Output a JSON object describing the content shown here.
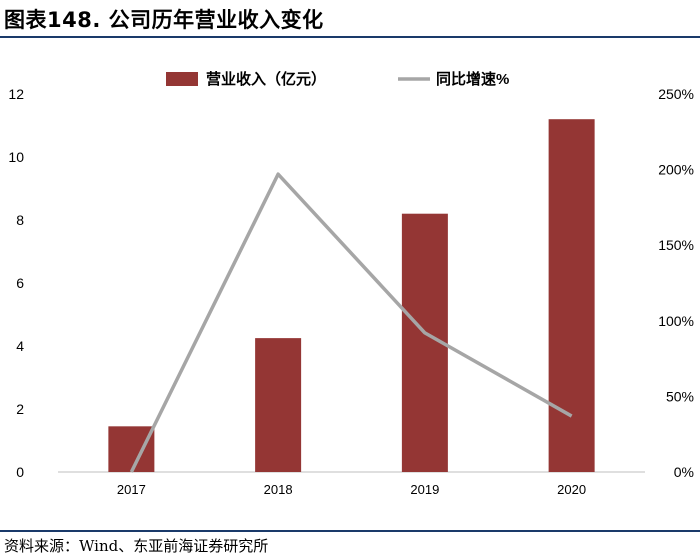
{
  "header": {
    "title": "图表148. 公司历年营业收入变化"
  },
  "footer": {
    "source": "资料来源：Wind、东亚前海证券研究所"
  },
  "colors": {
    "bar": "#943634",
    "line": "#a6a6a6",
    "rule": "#1a3a6a"
  },
  "chart_data": {
    "type": "bar",
    "categories": [
      "2017",
      "2018",
      "2019",
      "2020"
    ],
    "series": [
      {
        "name": "营业收入（亿元）",
        "type": "bar",
        "axis": "left",
        "values": [
          1.45,
          4.25,
          8.2,
          11.2
        ]
      },
      {
        "name": "同比增速%",
        "type": "line",
        "axis": "right",
        "values": [
          0,
          197,
          92,
          37
        ]
      }
    ],
    "y_left": {
      "ylim": [
        0,
        12
      ],
      "ticks": [
        "0",
        "2",
        "4",
        "6",
        "8",
        "10",
        "12"
      ]
    },
    "y_right": {
      "ylim": [
        0,
        250
      ],
      "ticks": [
        "0%",
        "50%",
        "100%",
        "150%",
        "200%",
        "250%"
      ]
    },
    "legend": "top-center",
    "grid": false
  }
}
